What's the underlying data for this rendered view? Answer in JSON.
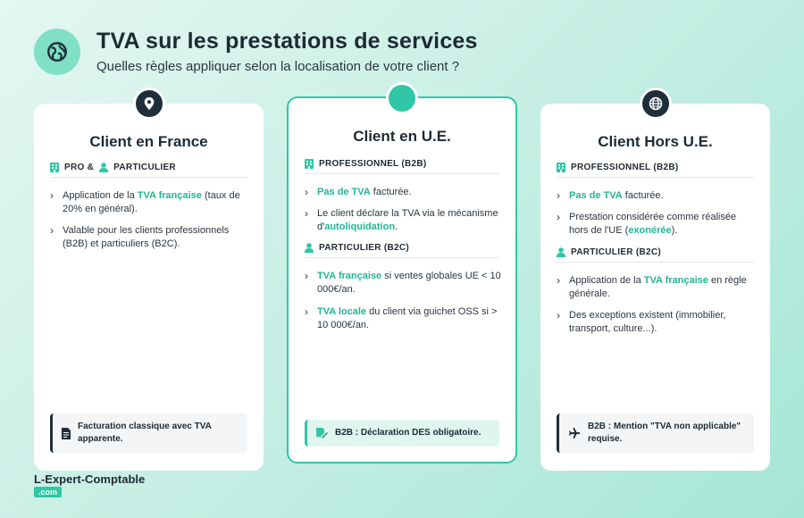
{
  "header": {
    "title": "TVA sur les prestations de services",
    "subtitle": "Quelles règles appliquer selon la localisation de votre client ?"
  },
  "colors": {
    "accent": "#2fc7a5",
    "highlight": "#22b594",
    "dark": "#1f2f3a"
  },
  "cards": {
    "france": {
      "title": "Client en France",
      "section": {
        "part1": "PRO &",
        "part2": "PARTICULIER"
      },
      "bullets": [
        {
          "before": "Application de la ",
          "highlight": "TVA française",
          "after": " (taux de 20% en général)."
        },
        {
          "before": "Valable pour les clients professionnels (B2B) et particuliers (B2C).",
          "highlight": "",
          "after": ""
        }
      ],
      "note": "Facturation classique avec TVA apparente."
    },
    "ue": {
      "title": "Client en U.E.",
      "sections": [
        "PROFESSIONNEL (B2B)",
        "PARTICULIER (B2C)"
      ],
      "pro_bullets": [
        {
          "before": "",
          "highlight": "Pas de TVA",
          "after": " facturée."
        },
        {
          "before": "Le client déclare la TVA via le mécanisme d'",
          "highlight": "autoliquidation",
          "after": "."
        }
      ],
      "part_bullets": [
        {
          "before": "",
          "highlight": "TVA française",
          "after": " si ventes globales UE < 10 000€/an."
        },
        {
          "before": "",
          "highlight": "TVA locale",
          "after": " du client via guichet OSS si > 10 000€/an."
        }
      ],
      "note": "B2B : Déclaration DES obligatoire."
    },
    "hors_ue": {
      "title": "Client Hors U.E.",
      "sections": [
        "PROFESSIONNEL (B2B)",
        "PARTICULIER (B2C)"
      ],
      "pro_bullets": [
        {
          "before": "",
          "highlight": "Pas de TVA",
          "after": " facturée."
        },
        {
          "before": "Prestation considérée comme réalisée hors de l'UE (",
          "highlight": "exonérée",
          "after": ")."
        }
      ],
      "part_bullets": [
        {
          "before": "Application de la ",
          "highlight": "TVA française",
          "after": " en règle générale."
        },
        {
          "before": "Des exceptions existent (immobilier, transport, culture...).",
          "highlight": "",
          "after": ""
        }
      ],
      "note": "B2B : Mention \"TVA non applicable\" requise."
    }
  },
  "footer": {
    "brand": "L-Expert-Comptable",
    "tld": ".com"
  },
  "icons": [
    "globe-icon",
    "location-pin-icon",
    "globe-icon",
    "building-icon",
    "user-icon",
    "document-icon",
    "signature-icon",
    "plane-icon",
    "chevron-right-icon"
  ]
}
